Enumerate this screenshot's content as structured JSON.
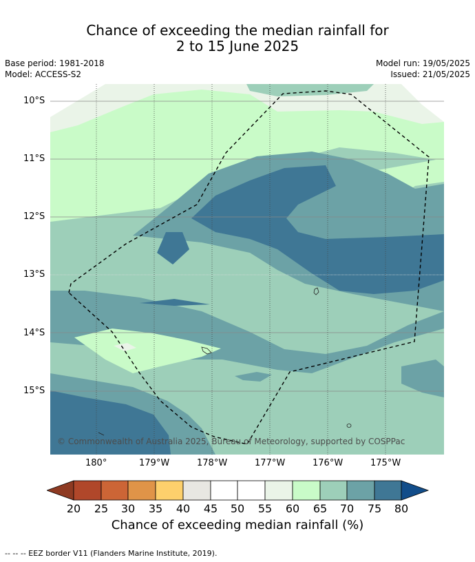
{
  "title_line1": "Chance of exceeding the median rainfall for",
  "title_line2": "2 to 15 June 2025",
  "base_period": "Base period: 1981-2018",
  "model": "Model: ACCESS-S2",
  "model_run": "Model run: 19/05/2025",
  "issued": "Issued: 21/05/2025",
  "lat_labels": [
    "10°S",
    "11°S",
    "12°S",
    "13°S",
    "14°S",
    "15°S"
  ],
  "lon_labels": [
    "180°",
    "179°W",
    "178°W",
    "177°W",
    "176°W",
    "175°W"
  ],
  "copyright": "© Commonwealth of Australia 2025, Bureau of Meteorology, supported by COSPPac",
  "colorbar": {
    "ticks": [
      "20",
      "25",
      "30",
      "35",
      "40",
      "45",
      "50",
      "55",
      "60",
      "65",
      "70",
      "75",
      "80"
    ],
    "label": "Chance of exceeding median rainfall (%)",
    "colors": {
      "under": "#8e3a22",
      "20-25": "#b0472a",
      "25-30": "#cc6536",
      "30-35": "#e09448",
      "35-40": "#fdd06c",
      "40-45": "#e8e7e2",
      "45-50": "#ffffff",
      "50-55": "#ffffff",
      "55-60": "#eaf4e8",
      "60-65": "#c9fbc8",
      "65-70": "#9dcfb9",
      "70-75": "#6ca2a6",
      "75-80": "#3f7795",
      "over": "#124d8a"
    }
  },
  "footnote": "--  --  -- EEZ border V11 (Flanders Marine Institute, 2019)."
}
